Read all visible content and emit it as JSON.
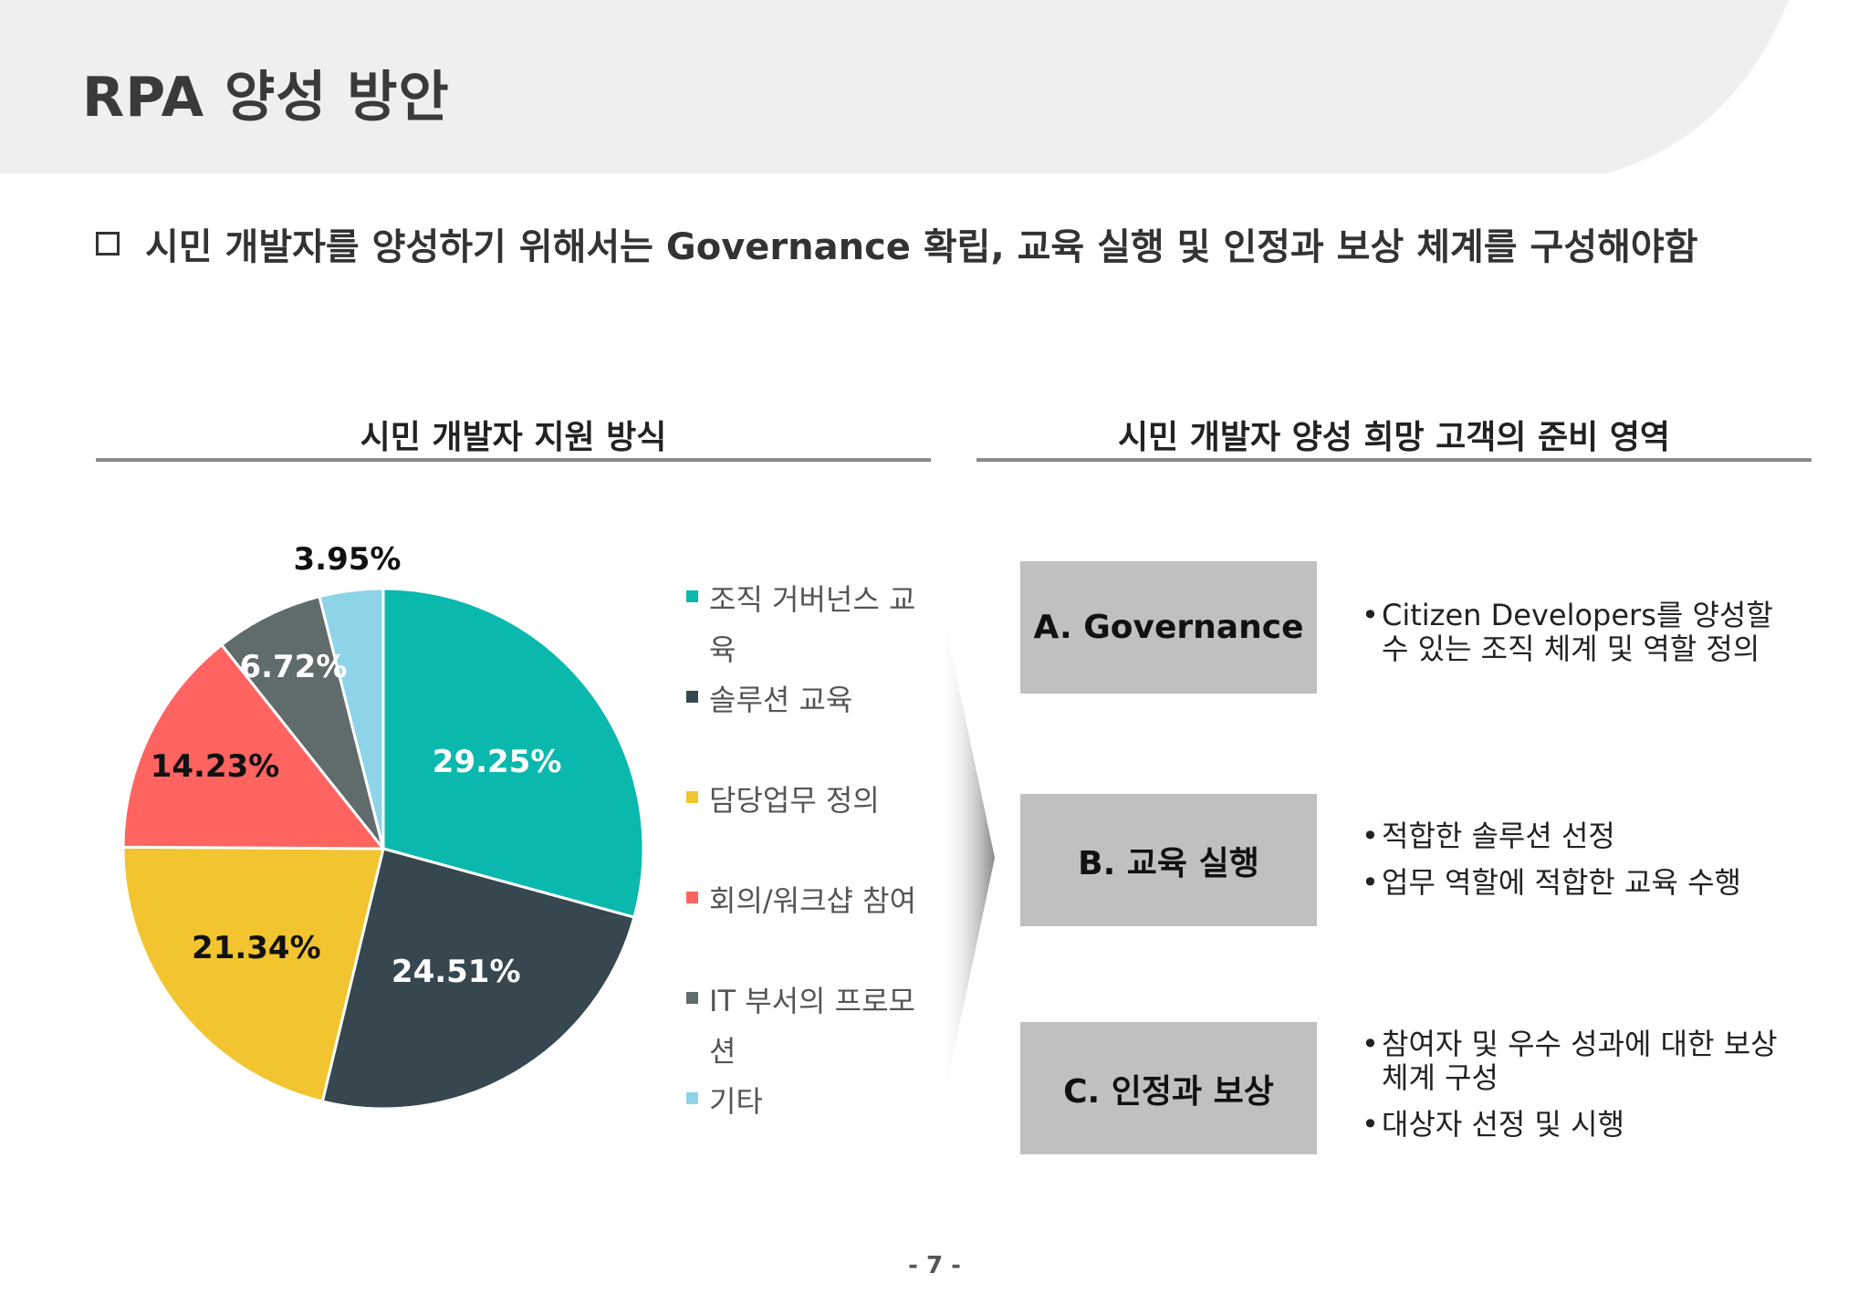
{
  "page": {
    "title": "RPA 양성 방안",
    "subtitle": "시민 개발자를 양성하기 위해서는 Governance 확립, 교육 실행 및 인정과 보상 체계를 구성해야함",
    "page_number": "- 7 -"
  },
  "left_section": {
    "heading": "시민 개발자 지원 방식"
  },
  "right_section": {
    "heading": "시민 개발자 양성 희망 고객의 준비 영역"
  },
  "chart_data": {
    "type": "pie",
    "title": "",
    "slices": [
      {
        "name": "조직 거버넌스 교육",
        "value": 29.25,
        "label": "29.25%",
        "color": "#0ab8ad",
        "label_color": "#ffffff"
      },
      {
        "name": "솔루션 교육",
        "value": 24.51,
        "label": "24.51%",
        "color": "#37474f",
        "label_color": "#ffffff"
      },
      {
        "name": "담당업무 정의",
        "value": 21.34,
        "label": "21.34%",
        "color": "#f2c530",
        "label_color": "#111111"
      },
      {
        "name": "회의/워크샵 참여",
        "value": 14.23,
        "label": "14.23%",
        "color": "#ff6461",
        "label_color": "#111111"
      },
      {
        "name": "IT 부서의 프로모션",
        "value": 6.72,
        "label": "6.72%",
        "color": "#606b6c",
        "label_color": "#ffffff"
      },
      {
        "name": "기타",
        "value": 3.95,
        "label": "3.95%",
        "color": "#8ed4e8",
        "label_color": "#111111"
      }
    ],
    "legend_position": "right"
  },
  "legend": {
    "items": [
      {
        "text": "조직 거버넌스 교육",
        "color": "#0ab8ad"
      },
      {
        "text": "솔루션 교육",
        "color": "#37474f"
      },
      {
        "text": "담당업무 정의",
        "color": "#f2c530"
      },
      {
        "text": "회의/워크샵 참여",
        "color": "#ff6461"
      },
      {
        "text": "IT 부서의 프로모션",
        "color": "#606b6c"
      },
      {
        "text": "기타",
        "color": "#8ed4e8"
      }
    ]
  },
  "areas": [
    {
      "label": "A. Governance",
      "bullets": [
        "Citizen Developers를 양성할 수 있는 조직 체계 및 역할 정의"
      ]
    },
    {
      "label": "B. 교육 실행",
      "bullets": [
        "적합한 솔루션 선정",
        "업무 역할에 적합한 교육 수행"
      ]
    },
    {
      "label": "C. 인정과 보상",
      "bullets": [
        "참여자 및 우수 성과에 대한 보상 체계 구성",
        "대상자 선정 및 시행"
      ]
    }
  ]
}
